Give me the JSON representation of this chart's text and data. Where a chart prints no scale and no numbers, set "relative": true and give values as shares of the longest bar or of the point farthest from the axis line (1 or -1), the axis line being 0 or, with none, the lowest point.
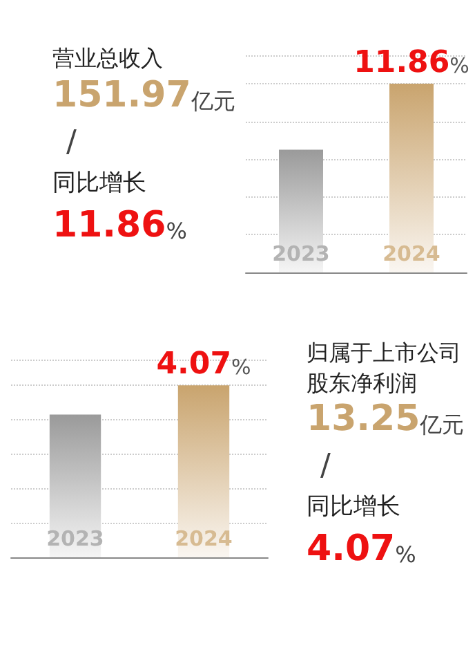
{
  "chart_data": [
    {
      "type": "bar",
      "title": "营业总收入",
      "categories": [
        "2023",
        "2024"
      ],
      "values": [
        0.65,
        1
      ],
      "colors": [
        "#9a9a9a",
        "#c9a46e"
      ],
      "relative": true,
      "grid": "y",
      "annotations": [
        "151.97亿元",
        "/",
        "同比增长",
        "11.86%",
        "11.86%"
      ]
    },
    {
      "type": "bar",
      "categories": [
        "2023",
        "2024"
      ],
      "values": [
        0.83,
        1
      ],
      "colors": [
        "#9a9a9a",
        "#c9a46e"
      ],
      "relative": true,
      "grid": "y",
      "annotations": [
        "归属于上市公司股东净利润",
        "13.25亿元",
        "/",
        "同比增长",
        "4.07%",
        "4.07%"
      ]
    }
  ]
}
